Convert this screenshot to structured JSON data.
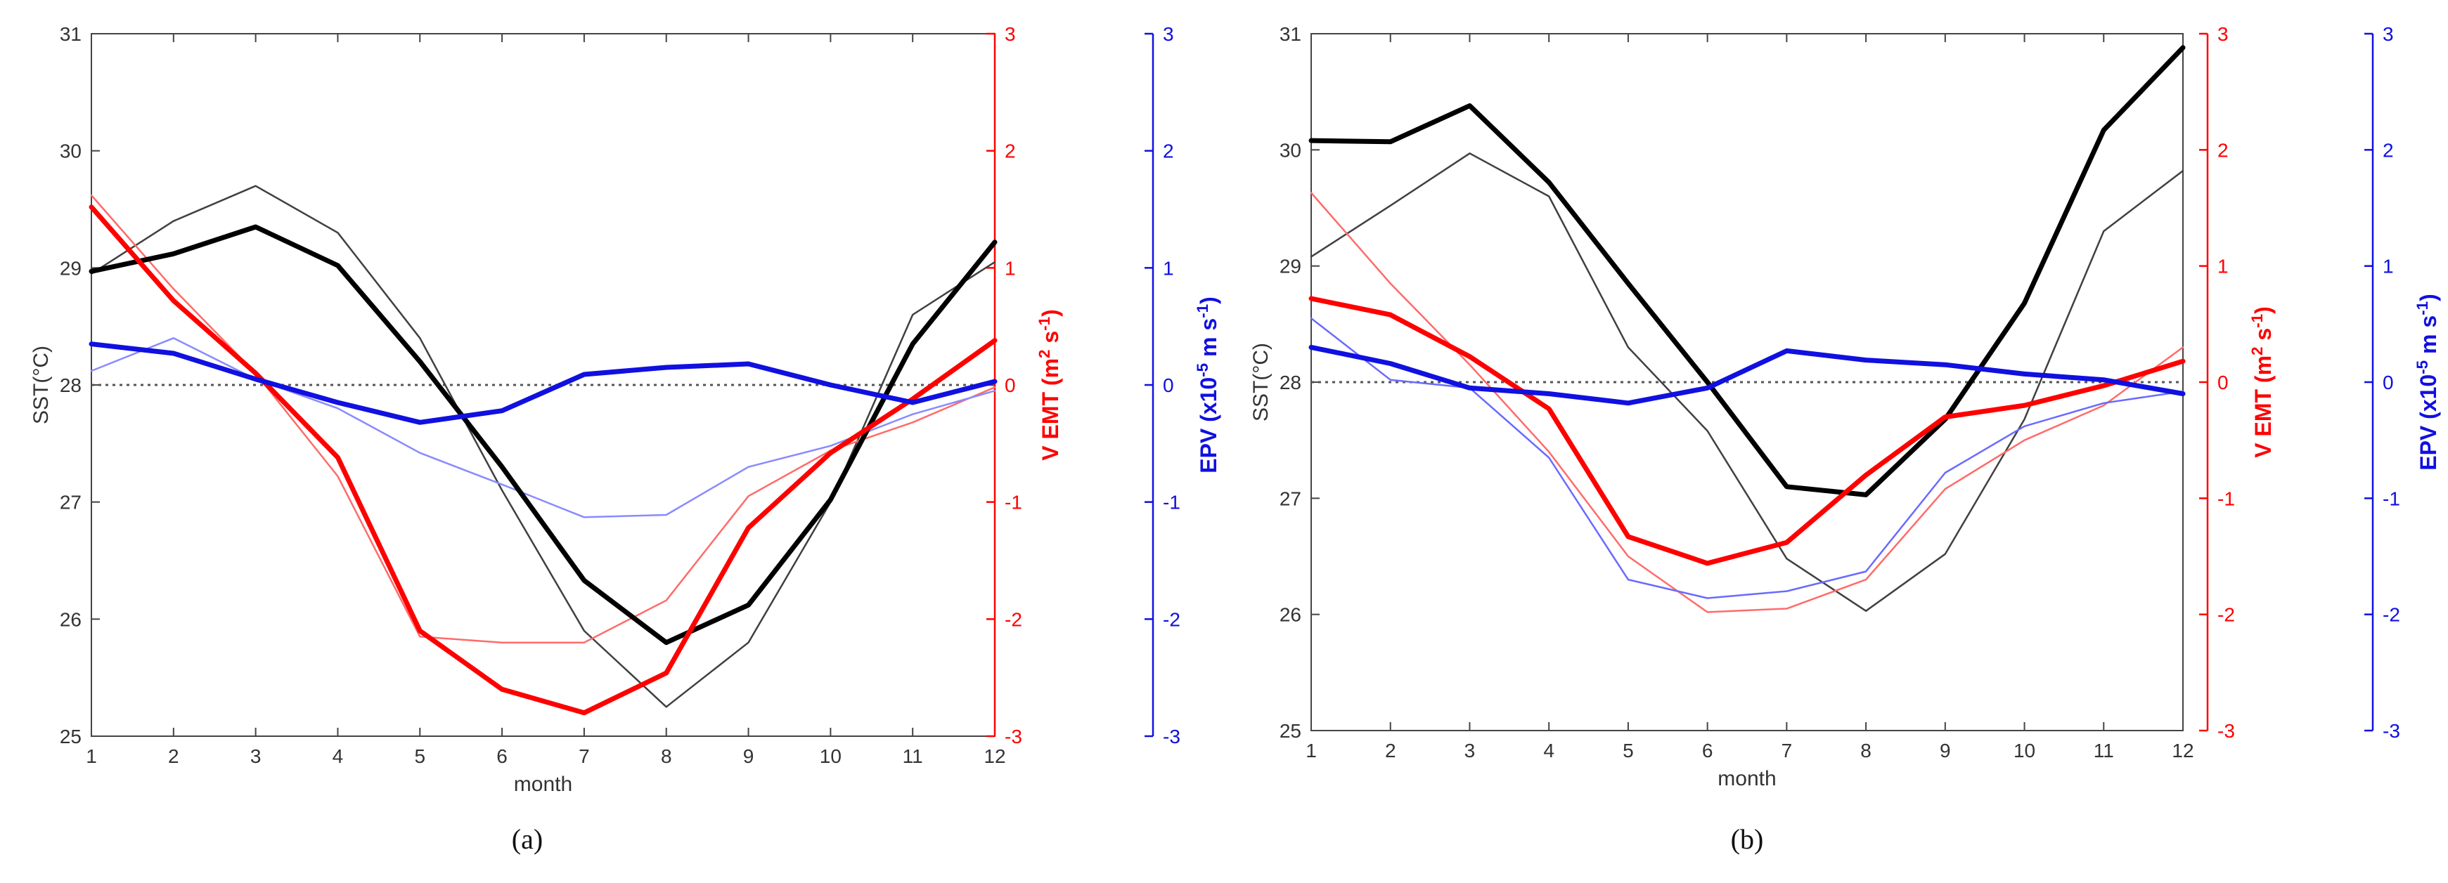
{
  "chart_data": [
    {
      "panel_label": "(a)",
      "type": "line",
      "xlabel": "month",
      "x": [
        1,
        2,
        3,
        4,
        5,
        6,
        7,
        8,
        9,
        10,
        11,
        12
      ],
      "xticks": [
        "1",
        "2",
        "3",
        "4",
        "5",
        "6",
        "7",
        "8",
        "9",
        "10",
        "11",
        "12"
      ],
      "xlim": [
        1,
        12
      ],
      "axes": {
        "left": {
          "label": "SST(°C)",
          "lim": [
            25,
            31
          ],
          "ticks": [
            "25",
            "26",
            "27",
            "28",
            "29",
            "30",
            "31"
          ],
          "color": "#333333"
        },
        "right1": {
          "label": "V EMT (m² s⁻¹)",
          "lim": [
            -3,
            3
          ],
          "ticks": [
            "-3",
            "-2",
            "-1",
            "0",
            "1",
            "2",
            "3"
          ],
          "color": "#ff0000"
        },
        "right2": {
          "label": "EPV (x10⁻⁵ m s⁻¹)",
          "lim": [
            -3,
            3
          ],
          "ticks": [
            "-3",
            "-2",
            "-1",
            "0",
            "1",
            "2",
            "3"
          ],
          "color": "#1010e0"
        }
      },
      "reference_line": {
        "axis": "right1",
        "value": 0,
        "style": "dotted"
      },
      "series": [
        {
          "name": "SST (thick)",
          "axis": "left",
          "color": "#000000",
          "weight": "thick",
          "values": [
            28.97,
            29.12,
            29.35,
            29.02,
            28.2,
            27.3,
            26.33,
            25.8,
            26.12,
            27.02,
            28.35,
            29.22
          ]
        },
        {
          "name": "SST (thin)",
          "axis": "left",
          "color": "#404040",
          "weight": "thin",
          "values": [
            28.95,
            29.4,
            29.7,
            29.3,
            28.4,
            27.1,
            25.9,
            25.25,
            25.8,
            27.0,
            28.6,
            29.05
          ]
        },
        {
          "name": "V EMT (thick)",
          "axis": "right1",
          "color": "#ff0000",
          "weight": "thick",
          "values": [
            1.52,
            0.72,
            0.1,
            -0.62,
            -2.1,
            -2.6,
            -2.8,
            -2.46,
            -1.22,
            -0.58,
            -0.12,
            0.38
          ]
        },
        {
          "name": "V EMT (thin)",
          "axis": "right1",
          "color": "#ff6b6b",
          "weight": "thin",
          "values": [
            1.62,
            0.82,
            0.1,
            -0.78,
            -2.15,
            -2.2,
            -2.2,
            -1.84,
            -0.95,
            -0.56,
            -0.32,
            -0.02
          ]
        },
        {
          "name": "EPV (thick)",
          "axis": "right2",
          "color": "#1010e0",
          "weight": "thick",
          "values": [
            0.35,
            0.27,
            0.05,
            -0.15,
            -0.32,
            -0.22,
            0.09,
            0.15,
            0.18,
            0.0,
            -0.15,
            0.03
          ]
        },
        {
          "name": "EPV (thin)",
          "axis": "right2",
          "color": "#8a8aff",
          "weight": "thin",
          "values": [
            0.12,
            0.4,
            0.05,
            -0.2,
            -0.58,
            -0.85,
            -1.13,
            -1.11,
            -0.7,
            -0.52,
            -0.25,
            -0.05
          ]
        }
      ]
    },
    {
      "panel_label": "(b)",
      "type": "line",
      "xlabel": "month",
      "x": [
        1,
        2,
        3,
        4,
        5,
        6,
        7,
        8,
        9,
        10,
        11,
        12
      ],
      "xticks": [
        "1",
        "2",
        "3",
        "4",
        "5",
        "6",
        "7",
        "8",
        "9",
        "10",
        "11",
        "12"
      ],
      "xlim": [
        1,
        12
      ],
      "axes": {
        "left": {
          "label": "SST(°C)",
          "lim": [
            25,
            31
          ],
          "ticks": [
            "25",
            "26",
            "27",
            "28",
            "29",
            "30",
            "31"
          ],
          "color": "#333333"
        },
        "right1": {
          "label": "V EMT (m² s⁻¹)",
          "lim": [
            -3,
            3
          ],
          "ticks": [
            "-3",
            "-2",
            "-1",
            "0",
            "1",
            "2",
            "3"
          ],
          "color": "#ff0000"
        },
        "right2": {
          "label": "EPV (x10⁻⁵ m s⁻¹)",
          "lim": [
            -3,
            3
          ],
          "ticks": [
            "-3",
            "-2",
            "-1",
            "0",
            "1",
            "2",
            "3"
          ],
          "color": "#1010e0"
        }
      },
      "reference_line": {
        "axis": "right1",
        "value": 0,
        "style": "dotted"
      },
      "series": [
        {
          "name": "SST (thick)",
          "axis": "left",
          "color": "#000000",
          "weight": "thick",
          "values": [
            30.08,
            30.07,
            30.38,
            29.72,
            28.85,
            28.0,
            27.1,
            27.03,
            27.68,
            28.68,
            30.17,
            30.88
          ]
        },
        {
          "name": "SST (thin)",
          "axis": "left",
          "color": "#404040",
          "weight": "thin",
          "values": [
            29.08,
            29.52,
            29.97,
            29.6,
            28.3,
            27.58,
            26.48,
            26.03,
            26.52,
            27.68,
            29.3,
            29.82
          ]
        },
        {
          "name": "V EMT (thick)",
          "axis": "right1",
          "color": "#ff0000",
          "weight": "thick",
          "values": [
            0.72,
            0.58,
            0.22,
            -0.23,
            -1.33,
            -1.56,
            -1.38,
            -0.8,
            -0.3,
            -0.2,
            -0.03,
            0.18
          ]
        },
        {
          "name": "V EMT (thin)",
          "axis": "right1",
          "color": "#ff6b6b",
          "weight": "thin",
          "values": [
            1.63,
            0.85,
            0.15,
            -0.6,
            -1.5,
            -1.98,
            -1.95,
            -1.7,
            -0.92,
            -0.5,
            -0.2,
            0.3
          ]
        },
        {
          "name": "EPV (thick)",
          "axis": "right2",
          "color": "#1010e0",
          "weight": "thick",
          "values": [
            0.3,
            0.16,
            -0.05,
            -0.1,
            -0.18,
            -0.05,
            0.27,
            0.19,
            0.15,
            0.07,
            0.02,
            -0.1
          ]
        },
        {
          "name": "EPV (thin)",
          "axis": "right2",
          "color": "#6a6aff",
          "weight": "thin",
          "values": [
            0.55,
            0.02,
            -0.05,
            -0.65,
            -1.7,
            -1.86,
            -1.8,
            -1.63,
            -0.78,
            -0.38,
            -0.18,
            -0.08
          ]
        }
      ]
    }
  ]
}
